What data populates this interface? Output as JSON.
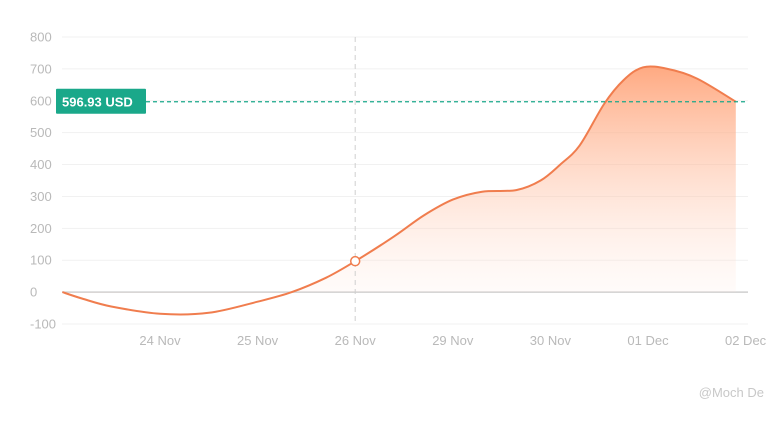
{
  "chart_data": {
    "type": "area",
    "x_labels": [
      "24 Nov",
      "25 Nov",
      "26 Nov",
      "29 Nov",
      "30 Nov",
      "01 Dec",
      "02 Dec"
    ],
    "y_ticks": [
      800,
      700,
      600,
      500,
      400,
      300,
      200,
      100,
      0,
      -100
    ],
    "ylim": [
      -100,
      800
    ],
    "grid": true,
    "series": [
      {
        "x": [
          -1.0,
          -0.8,
          -0.5,
          0.0,
          0.5,
          1.0,
          1.35,
          1.7,
          2.0,
          2.4,
          2.7,
          3.0,
          3.3,
          3.65,
          3.9,
          4.1,
          4.3,
          4.55,
          4.75,
          4.95,
          5.2,
          5.5,
          5.9
        ],
        "y": [
          0,
          -20,
          -45,
          -68,
          -65,
          -30,
          0,
          45,
          97,
          175,
          240,
          290,
          315,
          320,
          350,
          400,
          460,
          590,
          665,
          705,
          700,
          670,
          597
        ]
      }
    ],
    "line_color": "#f07d4e",
    "fill_color": "#ff9a6b",
    "price_line": {
      "value": 596.93,
      "label": "596.93 USD",
      "color": "#1aa88a"
    },
    "crosshair": {
      "x": 2.0,
      "y": 97,
      "x_label": "26 Nov"
    }
  },
  "watermark": "@Moch De"
}
